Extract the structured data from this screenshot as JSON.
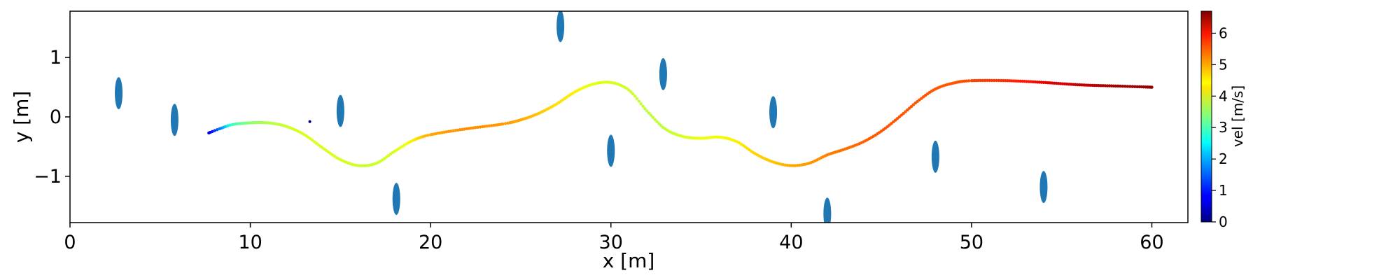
{
  "chart_data": {
    "type": "scatter",
    "xlabel": "x [m]",
    "ylabel": "y [m]",
    "xlim": [
      0,
      62
    ],
    "ylim": [
      -1.78,
      1.78
    ],
    "xticks": [
      0,
      10,
      20,
      30,
      40,
      50,
      60
    ],
    "yticks": [
      -1,
      0,
      1
    ],
    "grid": false,
    "colorbar": {
      "label": "vel [m/s]",
      "range": [
        0,
        6.7
      ],
      "ticks": [
        0,
        1,
        2,
        3,
        4,
        5,
        6
      ],
      "colormap": "jet"
    },
    "obstacles": {
      "color": "#1f77b4",
      "centers": [
        {
          "x": 2.7,
          "y": 0.4
        },
        {
          "x": 5.8,
          "y": -0.05
        },
        {
          "x": 15.0,
          "y": 0.1
        },
        {
          "x": 18.1,
          "y": -1.38
        },
        {
          "x": 27.2,
          "y": 1.53
        },
        {
          "x": 30.0,
          "y": -0.57
        },
        {
          "x": 32.9,
          "y": 0.72
        },
        {
          "x": 39.0,
          "y": 0.08
        },
        {
          "x": 42.0,
          "y": -1.63
        },
        {
          "x": 48.0,
          "y": -0.67
        },
        {
          "x": 54.0,
          "y": -1.18
        }
      ]
    },
    "goal_point": {
      "x": 13.3,
      "y": -0.08
    },
    "trajectory": {
      "marker_color_by": "velocity",
      "points": [
        {
          "x": 7.7,
          "y": -0.27,
          "v": 0.6
        },
        {
          "x": 8.3,
          "y": -0.2,
          "v": 1.6
        },
        {
          "x": 9.0,
          "y": -0.13,
          "v": 2.8
        },
        {
          "x": 10.0,
          "y": -0.1,
          "v": 3.5
        },
        {
          "x": 11.0,
          "y": -0.1,
          "v": 3.8
        },
        {
          "x": 12.0,
          "y": -0.16,
          "v": 4.0
        },
        {
          "x": 13.0,
          "y": -0.3,
          "v": 4.1
        },
        {
          "x": 14.0,
          "y": -0.52,
          "v": 4.1
        },
        {
          "x": 15.0,
          "y": -0.72,
          "v": 4.1
        },
        {
          "x": 16.0,
          "y": -0.82,
          "v": 4.0
        },
        {
          "x": 17.0,
          "y": -0.78,
          "v": 4.0
        },
        {
          "x": 18.0,
          "y": -0.58,
          "v": 4.1
        },
        {
          "x": 19.0,
          "y": -0.4,
          "v": 4.4
        },
        {
          "x": 20.0,
          "y": -0.3,
          "v": 4.9
        },
        {
          "x": 22.0,
          "y": -0.2,
          "v": 5.1
        },
        {
          "x": 24.0,
          "y": -0.12,
          "v": 5.0
        },
        {
          "x": 25.0,
          "y": -0.05,
          "v": 4.9
        },
        {
          "x": 26.0,
          "y": 0.06,
          "v": 4.7
        },
        {
          "x": 27.0,
          "y": 0.22,
          "v": 4.5
        },
        {
          "x": 28.0,
          "y": 0.42,
          "v": 4.4
        },
        {
          "x": 29.0,
          "y": 0.55,
          "v": 4.2
        },
        {
          "x": 30.0,
          "y": 0.58,
          "v": 4.1
        },
        {
          "x": 31.0,
          "y": 0.45,
          "v": 4.0
        },
        {
          "x": 32.0,
          "y": 0.1,
          "v": 3.9
        },
        {
          "x": 33.0,
          "y": -0.2,
          "v": 3.9
        },
        {
          "x": 34.0,
          "y": -0.33,
          "v": 4.1
        },
        {
          "x": 35.0,
          "y": -0.36,
          "v": 4.3
        },
        {
          "x": 36.0,
          "y": -0.34,
          "v": 4.3
        },
        {
          "x": 37.0,
          "y": -0.42,
          "v": 4.4
        },
        {
          "x": 38.0,
          "y": -0.62,
          "v": 4.6
        },
        {
          "x": 39.0,
          "y": -0.76,
          "v": 4.7
        },
        {
          "x": 40.0,
          "y": -0.82,
          "v": 4.9
        },
        {
          "x": 41.0,
          "y": -0.78,
          "v": 5.0
        },
        {
          "x": 42.0,
          "y": -0.64,
          "v": 5.2
        },
        {
          "x": 43.0,
          "y": -0.54,
          "v": 5.3
        },
        {
          "x": 44.0,
          "y": -0.42,
          "v": 5.4
        },
        {
          "x": 45.0,
          "y": -0.24,
          "v": 5.5
        },
        {
          "x": 46.0,
          "y": 0.0,
          "v": 5.5
        },
        {
          "x": 47.0,
          "y": 0.26,
          "v": 5.5
        },
        {
          "x": 48.0,
          "y": 0.47,
          "v": 5.5
        },
        {
          "x": 49.0,
          "y": 0.57,
          "v": 5.5
        },
        {
          "x": 50.0,
          "y": 0.61,
          "v": 5.6
        },
        {
          "x": 52.0,
          "y": 0.61,
          "v": 5.8
        },
        {
          "x": 54.0,
          "y": 0.58,
          "v": 6.1
        },
        {
          "x": 56.0,
          "y": 0.54,
          "v": 6.3
        },
        {
          "x": 58.0,
          "y": 0.52,
          "v": 6.5
        },
        {
          "x": 60.0,
          "y": 0.5,
          "v": 6.6
        }
      ]
    }
  }
}
